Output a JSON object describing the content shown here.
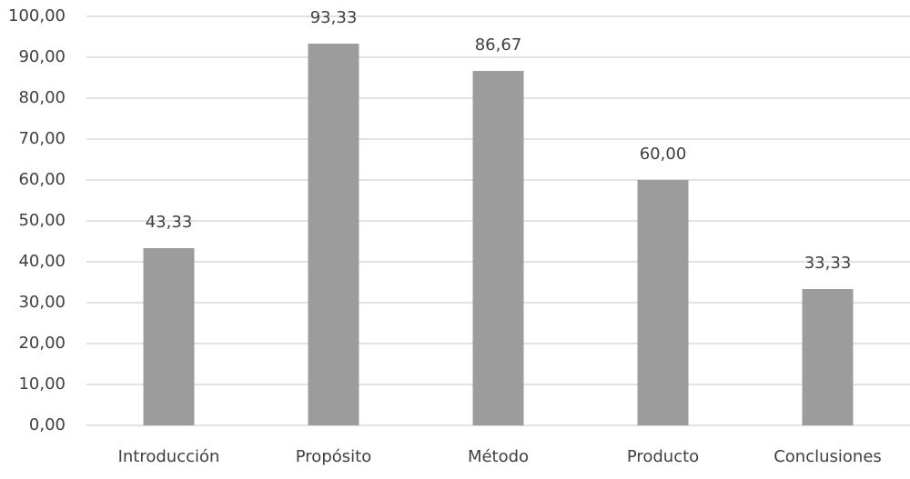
{
  "chart_data": {
    "type": "bar",
    "categories": [
      "Introducción",
      "Propósito",
      "Método",
      "Producto",
      "Conclusiones"
    ],
    "values": [
      43.33,
      93.33,
      86.67,
      60,
      33.33
    ],
    "value_labels": [
      "43,33",
      "93,33",
      "86,67",
      "60,00",
      "33,33"
    ],
    "color": "#9c9c9c",
    "ylim": [
      0,
      100
    ],
    "yticks": [
      {
        "value": 0,
        "label": "0,00"
      },
      {
        "value": 10,
        "label": "10,00"
      },
      {
        "value": 20,
        "label": "20,00"
      },
      {
        "value": 30,
        "label": "30,00"
      },
      {
        "value": 40,
        "label": "40,00"
      },
      {
        "value": 50,
        "label": "50,00"
      },
      {
        "value": 60,
        "label": "60,00"
      },
      {
        "value": 70,
        "label": "70,00"
      },
      {
        "value": 80,
        "label": "80,00"
      },
      {
        "value": 90,
        "label": "90,00"
      },
      {
        "value": 100,
        "label": "100,00"
      }
    ],
    "grid": true
  }
}
